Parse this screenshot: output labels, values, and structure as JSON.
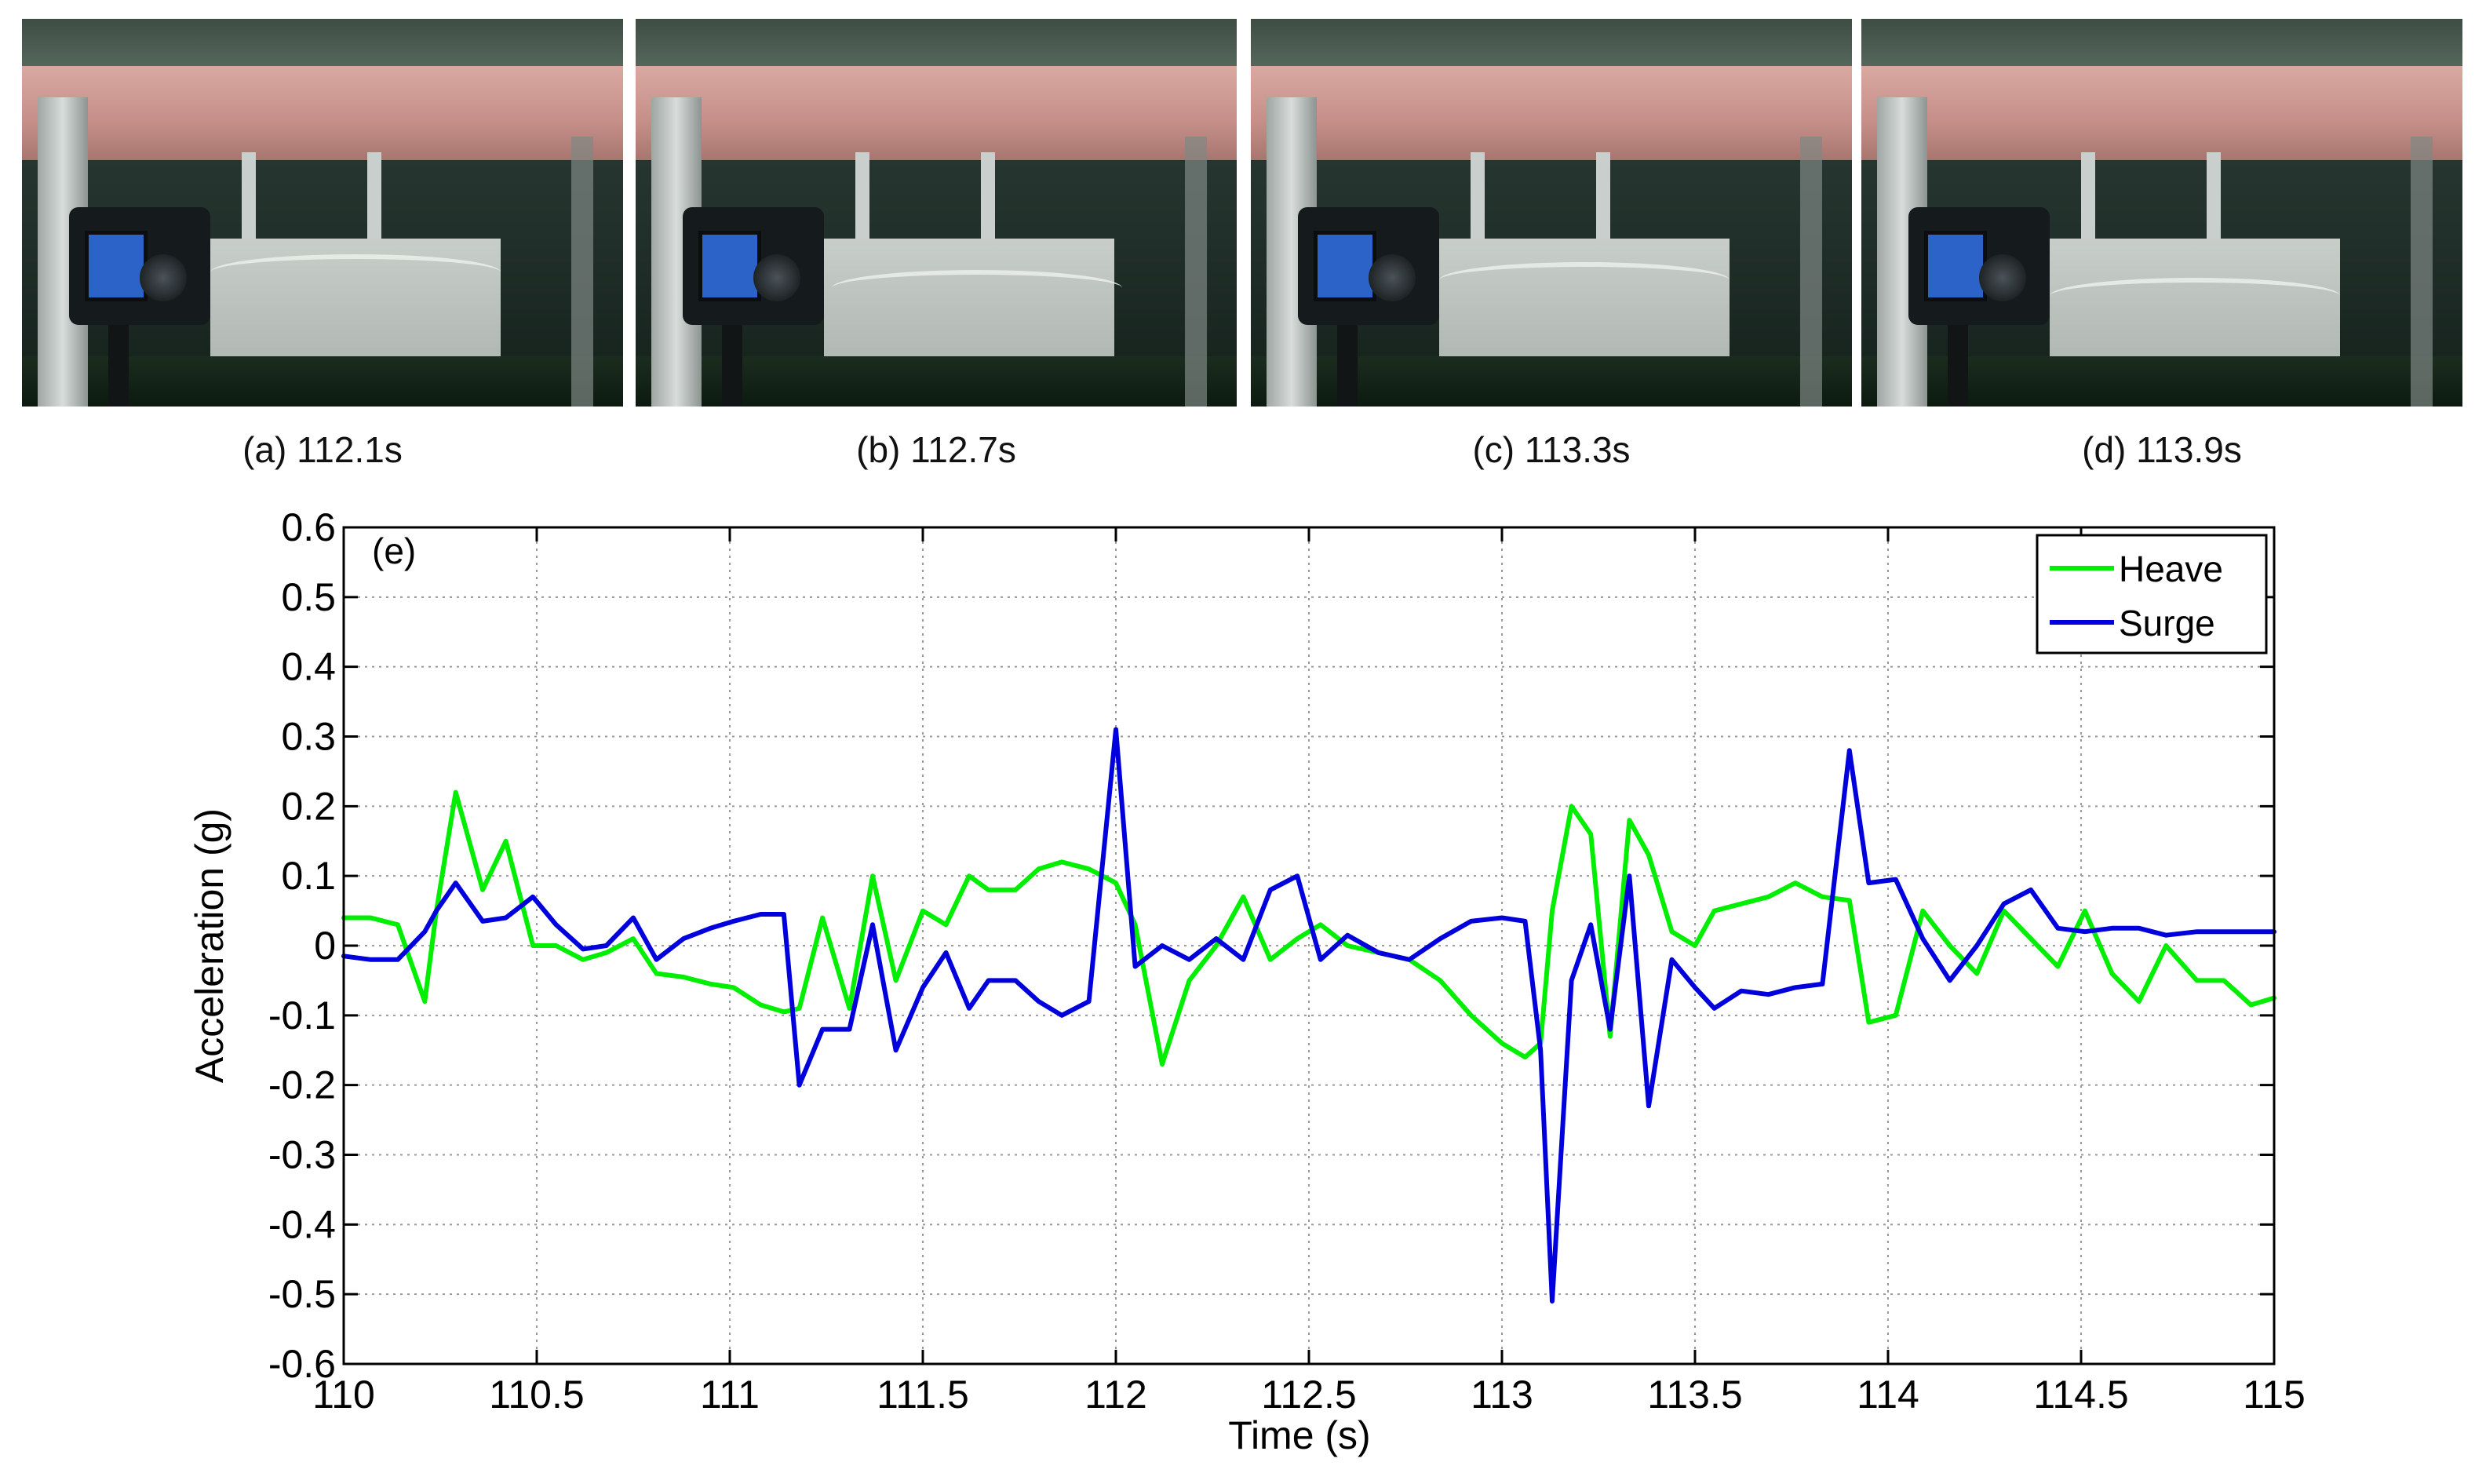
{
  "captions": {
    "a": "(a) 112.1s",
    "b": "(b) 112.7s",
    "c": "(c) 113.3s",
    "d": "(d) 113.9s"
  },
  "chart_data": {
    "type": "line",
    "panel_label": "(e)",
    "xlabel": "Time (s)",
    "ylabel": "Acceleration (g)",
    "xlim": [
      110,
      115
    ],
    "ylim": [
      -0.6,
      0.6
    ],
    "x_ticks": [
      110,
      110.5,
      111,
      111.5,
      112,
      112.5,
      113,
      113.5,
      114,
      114.5,
      115
    ],
    "x_tick_labels": [
      "110",
      "110.5",
      "111",
      "111.5",
      "112",
      "112.5",
      "113",
      "113.5",
      "114",
      "114.5",
      "115"
    ],
    "y_ticks": [
      0.6,
      0.5,
      0.4,
      0.3,
      0.2,
      0.1,
      0,
      -0.1,
      -0.2,
      -0.3,
      -0.4,
      -0.5,
      -0.6
    ],
    "y_tick_labels": [
      "0.6",
      "0.5",
      "0.4",
      "0.3",
      "0.2",
      "0.1",
      "0",
      "-0.1",
      "-0.2",
      "-0.3",
      "-0.4",
      "-0.5",
      "-0.6"
    ],
    "grid": true,
    "legend_position": "top-right",
    "series": [
      {
        "name": "Heave",
        "color": "#00ee00",
        "x": [
          110.0,
          110.07,
          110.14,
          110.21,
          110.24,
          110.29,
          110.36,
          110.42,
          110.49,
          110.55,
          110.62,
          110.68,
          110.75,
          110.81,
          110.88,
          110.95,
          111.01,
          111.08,
          111.14,
          111.18,
          111.24,
          111.31,
          111.37,
          111.43,
          111.5,
          111.56,
          111.62,
          111.67,
          111.74,
          111.8,
          111.86,
          111.93,
          112.0,
          112.05,
          112.12,
          112.19,
          112.26,
          112.33,
          112.4,
          112.47,
          112.53,
          112.6,
          112.68,
          112.76,
          112.84,
          112.92,
          113.0,
          113.06,
          113.1,
          113.13,
          113.18,
          113.23,
          113.28,
          113.33,
          113.38,
          113.44,
          113.5,
          113.55,
          113.62,
          113.69,
          113.76,
          113.83,
          113.9,
          113.95,
          114.02,
          114.09,
          114.16,
          114.23,
          114.3,
          114.37,
          114.44,
          114.51,
          114.58,
          114.65,
          114.72,
          114.8,
          114.87,
          114.94,
          115.0
        ],
        "y": [
          0.04,
          0.04,
          0.03,
          -0.08,
          0.05,
          0.22,
          0.08,
          0.15,
          0.0,
          0.0,
          -0.02,
          -0.01,
          0.01,
          -0.04,
          -0.045,
          -0.055,
          -0.06,
          -0.085,
          -0.095,
          -0.09,
          0.04,
          -0.09,
          0.1,
          -0.05,
          0.05,
          0.03,
          0.1,
          0.08,
          0.08,
          0.11,
          0.12,
          0.11,
          0.09,
          0.03,
          -0.17,
          -0.05,
          0.0,
          0.07,
          -0.02,
          0.01,
          0.03,
          0.0,
          -0.01,
          -0.02,
          -0.05,
          -0.1,
          -0.14,
          -0.16,
          -0.14,
          0.05,
          0.2,
          0.16,
          -0.13,
          0.18,
          0.13,
          0.02,
          0.0,
          0.05,
          0.06,
          0.07,
          0.09,
          0.07,
          0.065,
          -0.11,
          -0.1,
          0.05,
          0.0,
          -0.04,
          0.05,
          0.01,
          -0.03,
          0.05,
          -0.04,
          -0.08,
          0.0,
          -0.05,
          -0.05,
          -0.085,
          -0.075
        ]
      },
      {
        "name": "Surge",
        "color": "#0000dd",
        "x": [
          110.0,
          110.07,
          110.14,
          110.21,
          110.24,
          110.29,
          110.36,
          110.42,
          110.49,
          110.55,
          110.62,
          110.68,
          110.75,
          110.81,
          110.88,
          110.95,
          111.01,
          111.08,
          111.14,
          111.18,
          111.24,
          111.31,
          111.37,
          111.43,
          111.5,
          111.56,
          111.62,
          111.67,
          111.74,
          111.8,
          111.86,
          111.93,
          112.0,
          112.05,
          112.12,
          112.19,
          112.26,
          112.33,
          112.4,
          112.47,
          112.53,
          112.6,
          112.68,
          112.76,
          112.84,
          112.92,
          113.0,
          113.06,
          113.1,
          113.13,
          113.18,
          113.23,
          113.28,
          113.33,
          113.38,
          113.44,
          113.5,
          113.55,
          113.62,
          113.69,
          113.76,
          113.83,
          113.9,
          113.95,
          114.02,
          114.09,
          114.16,
          114.23,
          114.3,
          114.37,
          114.44,
          114.51,
          114.58,
          114.65,
          114.72,
          114.8,
          114.87,
          114.94,
          115.0
        ],
        "y": [
          -0.015,
          -0.02,
          -0.02,
          0.02,
          0.05,
          0.09,
          0.035,
          0.04,
          0.07,
          0.03,
          -0.005,
          0.0,
          0.04,
          -0.02,
          0.01,
          0.025,
          0.035,
          0.045,
          0.045,
          -0.2,
          -0.12,
          -0.12,
          0.03,
          -0.15,
          -0.06,
          -0.01,
          -0.09,
          -0.05,
          -0.05,
          -0.08,
          -0.1,
          -0.08,
          0.31,
          -0.03,
          0.0,
          -0.02,
          0.01,
          -0.02,
          0.08,
          0.1,
          -0.02,
          0.015,
          -0.01,
          -0.02,
          0.01,
          0.035,
          0.04,
          0.035,
          -0.15,
          -0.51,
          -0.05,
          0.03,
          -0.12,
          0.1,
          -0.23,
          -0.02,
          -0.06,
          -0.09,
          -0.065,
          -0.07,
          -0.06,
          -0.055,
          0.28,
          0.09,
          0.095,
          0.01,
          -0.05,
          0.0,
          0.06,
          0.08,
          0.025,
          0.02,
          0.025,
          0.025,
          0.015,
          0.02,
          0.02,
          0.02,
          0.02
        ]
      }
    ]
  }
}
